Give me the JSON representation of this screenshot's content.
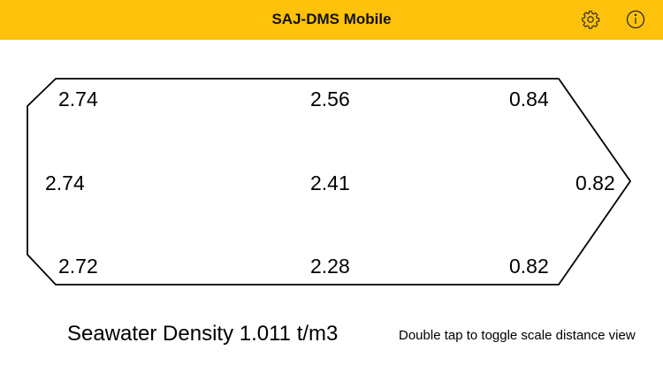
{
  "header": {
    "title": "SAJ-DMS Mobile",
    "icons": [
      "gear-icon",
      "info-icon"
    ],
    "background": "#FEC20C"
  },
  "drafts": {
    "top": {
      "aft": "2.74",
      "mid": "2.56",
      "fwd": "0.84"
    },
    "center": {
      "aft": "2.74",
      "mid": "2.41",
      "fwd": "0.82"
    },
    "bottom": {
      "aft": "2.72",
      "mid": "2.28",
      "fwd": "0.82"
    }
  },
  "footer": {
    "density": "Seawater Density 1.011 t/m3",
    "hint": "Double tap to toggle scale distance view"
  }
}
